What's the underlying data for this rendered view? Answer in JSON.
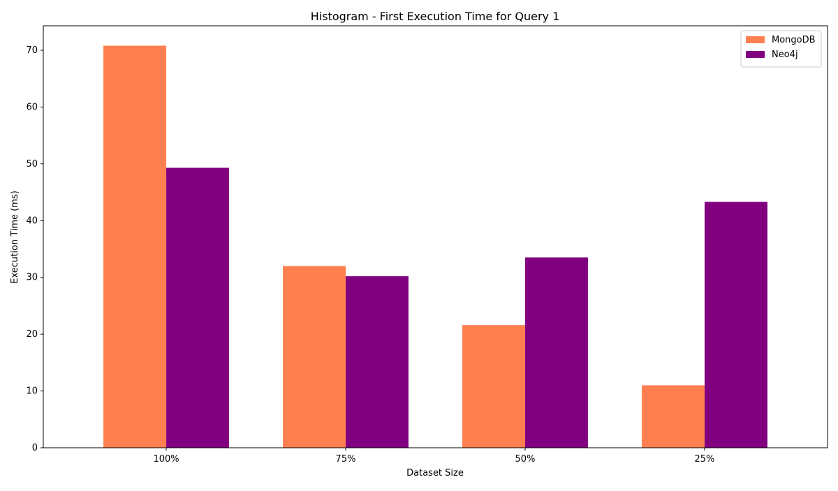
{
  "chart_data": {
    "type": "bar",
    "title": "Histogram - First Execution Time for Query 1",
    "xlabel": "Dataset Size",
    "ylabel": "Execution Time (ms)",
    "categories": [
      "100%",
      "75%",
      "50%",
      "25%"
    ],
    "series": [
      {
        "name": "MongoDB",
        "color": "#FF7F50",
        "values": [
          70.8,
          32.0,
          21.6,
          11.0
        ]
      },
      {
        "name": "Neo4j",
        "color": "#800080",
        "values": [
          49.3,
          30.2,
          33.5,
          43.3
        ]
      }
    ],
    "ylim": [
      0,
      74.3
    ],
    "yticks": [
      0,
      10,
      20,
      30,
      40,
      50,
      60,
      70
    ],
    "grid": false,
    "legend_position": "top-right"
  }
}
